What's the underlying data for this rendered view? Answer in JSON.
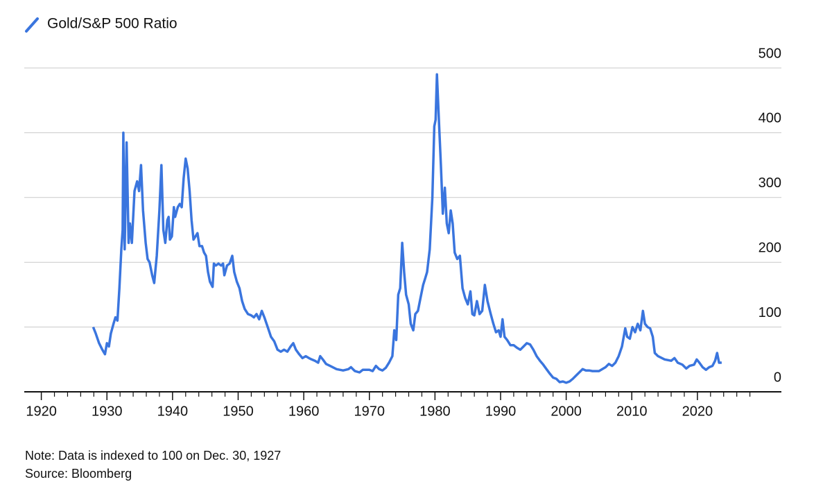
{
  "chart_data": {
    "type": "line",
    "x": [
      1927.9,
      1928.3,
      1928.8,
      1929.3,
      1929.7,
      1930,
      1930.3,
      1930.6,
      1931,
      1931.3,
      1931.6,
      1931.9,
      1932.2,
      1932.4,
      1932.5,
      1932.7,
      1933,
      1933.3,
      1933.5,
      1933.8,
      1934.2,
      1934.6,
      1934.9,
      1935.2,
      1935.5,
      1935.9,
      1936.2,
      1936.5,
      1936.9,
      1937.2,
      1937.6,
      1938,
      1938.3,
      1938.6,
      1938.9,
      1939.2,
      1939.4,
      1939.6,
      1939.9,
      1940.2,
      1940.4,
      1940.8,
      1941.1,
      1941.4,
      1941.7,
      1942,
      1942.3,
      1942.6,
      1942.9,
      1943.2,
      1943.5,
      1943.8,
      1944.1,
      1944.5,
      1944.8,
      1945.1,
      1945.4,
      1945.7,
      1946.1,
      1946.3,
      1946.6,
      1947,
      1947.4,
      1947.7,
      1947.9,
      1948.3,
      1948.7,
      1949.1,
      1949.4,
      1949.8,
      1950.2,
      1950.6,
      1951,
      1951.5,
      1952,
      1952.4,
      1952.8,
      1953.2,
      1953.6,
      1954,
      1954.5,
      1955,
      1955.5,
      1956,
      1956.5,
      1957,
      1957.5,
      1958,
      1958.4,
      1958.8,
      1959.3,
      1959.8,
      1960.3,
      1960.8,
      1961.2,
      1961.7,
      1962.2,
      1962.5,
      1962.9,
      1963.4,
      1964,
      1965,
      1966,
      1966.8,
      1967.2,
      1967.8,
      1968.5,
      1969,
      1970,
      1970.5,
      1971,
      1971.5,
      1972,
      1972.5,
      1973,
      1973.5,
      1973.8,
      1974.1,
      1974.4,
      1974.7,
      1975,
      1975.3,
      1975.6,
      1976,
      1976.3,
      1976.7,
      1977,
      1977.4,
      1977.8,
      1978.2,
      1978.5,
      1978.8,
      1979.2,
      1979.6,
      1979.9,
      1980.1,
      1980.3,
      1980.6,
      1980.9,
      1981.2,
      1981.5,
      1981.8,
      1982.1,
      1982.4,
      1982.7,
      1983,
      1983.4,
      1983.8,
      1984.2,
      1984.6,
      1985,
      1985.4,
      1985.7,
      1986,
      1986.4,
      1986.8,
      1987.2,
      1987.6,
      1988,
      1988.5,
      1988.9,
      1989.3,
      1989.7,
      1990,
      1990.3,
      1990.6,
      1991,
      1991.5,
      1992,
      1992.5,
      1993,
      1993.5,
      1994,
      1994.5,
      1995,
      1995.5,
      1996,
      1996.5,
      1997,
      1997.5,
      1998,
      1998.5,
      1999,
      1999.5,
      2000,
      2000.5,
      2001,
      2001.5,
      2002,
      2002.5,
      2003,
      2003.5,
      2004,
      2005,
      2005.5,
      2006,
      2006.5,
      2007,
      2007.5,
      2008,
      2008.5,
      2009,
      2009.3,
      2009.7,
      2010.1,
      2010.5,
      2010.9,
      2011.3,
      2011.7,
      2012,
      2012.4,
      2012.8,
      2013.2,
      2013.5,
      2014,
      2015,
      2016,
      2016.5,
      2017,
      2017.7,
      2018.3,
      2018.8,
      2019.5,
      2019.9,
      2020.3,
      2020.8,
      2021.3,
      2021.8,
      2022.3,
      2022.7,
      2023,
      2023.3,
      2023.7
    ],
    "series": [
      {
        "name": "Gold/S&P 500 Ratio",
        "color": "#3a75de",
        "values": [
          100,
          90,
          75,
          65,
          58,
          75,
          70,
          90,
          105,
          115,
          110,
          160,
          220,
          250,
          400,
          220,
          385,
          230,
          260,
          230,
          310,
          325,
          310,
          350,
          280,
          230,
          205,
          200,
          180,
          168,
          210,
          280,
          350,
          250,
          230,
          265,
          270,
          235,
          240,
          285,
          270,
          285,
          290,
          285,
          330,
          360,
          345,
          310,
          265,
          235,
          240,
          245,
          225,
          225,
          215,
          210,
          185,
          170,
          162,
          198,
          195,
          198,
          195,
          198,
          180,
          195,
          198,
          210,
          185,
          170,
          160,
          140,
          128,
          120,
          118,
          115,
          120,
          112,
          125,
          115,
          100,
          85,
          78,
          65,
          62,
          65,
          62,
          70,
          75,
          65,
          58,
          52,
          55,
          52,
          50,
          48,
          45,
          55,
          50,
          43,
          40,
          35,
          33,
          35,
          38,
          32,
          30,
          34,
          34,
          32,
          40,
          35,
          33,
          37,
          45,
          55,
          95,
          80,
          150,
          160,
          230,
          185,
          150,
          135,
          105,
          95,
          120,
          125,
          145,
          165,
          175,
          185,
          220,
          300,
          410,
          420,
          490,
          420,
          350,
          275,
          315,
          260,
          245,
          280,
          260,
          215,
          205,
          210,
          160,
          145,
          135,
          155,
          120,
          118,
          140,
          120,
          125,
          165,
          140,
          120,
          105,
          92,
          95,
          85,
          112,
          85,
          80,
          72,
          72,
          68,
          65,
          70,
          75,
          73,
          65,
          55,
          48,
          42,
          35,
          28,
          22,
          20,
          15,
          16,
          14,
          16,
          20,
          25,
          30,
          35,
          33,
          33,
          32,
          32,
          35,
          38,
          43,
          40,
          45,
          55,
          70,
          98,
          85,
          82,
          100,
          92,
          105,
          95,
          125,
          105,
          100,
          98,
          85,
          60,
          55,
          50,
          48,
          52,
          45,
          42,
          36,
          40,
          42,
          50,
          45,
          38,
          34,
          38,
          40,
          48,
          60,
          45,
          45
        ]
      }
    ],
    "xlim": [
      1917.4,
      2032.8
    ],
    "xticks": [
      1920,
      1930,
      1940,
      1950,
      1960,
      1970,
      1980,
      1990,
      2000,
      2010,
      2020
    ],
    "xminorticks": [
      1922,
      1924,
      1926,
      1928,
      1932,
      1934,
      1936,
      1938,
      1942,
      1944,
      1946,
      1948,
      1952,
      1954,
      1956,
      1958,
      1962,
      1964,
      1966,
      1968,
      1972,
      1974,
      1976,
      1978,
      1982,
      1984,
      1986,
      1988,
      1992,
      1994,
      1996,
      1998,
      2002,
      2004,
      2006,
      2008,
      2012,
      2014,
      2016,
      2018,
      2022,
      2024,
      2026,
      2028
    ],
    "ylim": [
      0,
      500
    ],
    "yticks": [
      0,
      100,
      200,
      300,
      400,
      500
    ],
    "grid": true,
    "notes": [
      "Note: Data is indexed to 100 on Dec. 30, 1927",
      "Source: Bloomberg"
    ]
  }
}
